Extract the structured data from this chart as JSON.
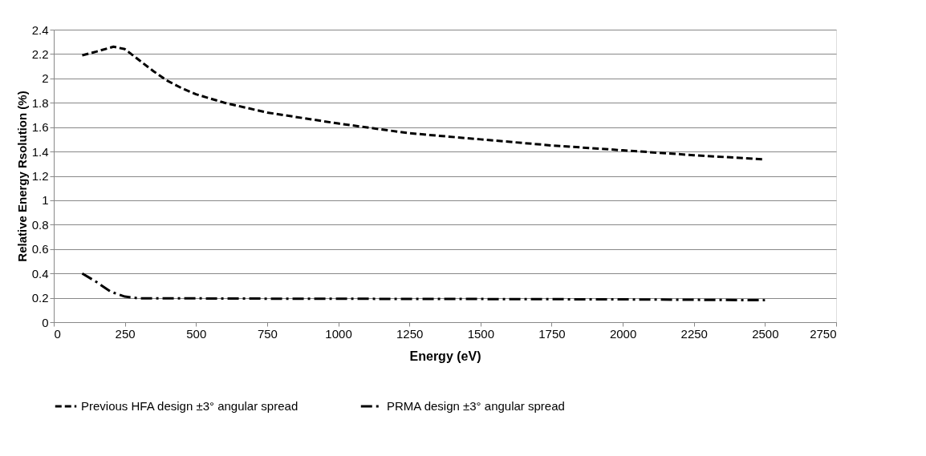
{
  "chart_data": {
    "type": "line",
    "xlabel": "Energy (eV)",
    "ylabel": "Relative Energy Rsolution (%)",
    "xlim": [
      0,
      2750
    ],
    "xticks": [
      0,
      250,
      500,
      750,
      1000,
      1250,
      1500,
      1750,
      2000,
      2250,
      2500,
      2750
    ],
    "ylim": [
      0,
      2.4
    ],
    "yticks": [
      0,
      0.2,
      0.4,
      0.6,
      0.8,
      1,
      1.2,
      1.4,
      1.6,
      1.8,
      2,
      2.2,
      2.4
    ],
    "grid": "y",
    "legend": "bottom",
    "marker": "none",
    "series": [
      {
        "name": "Previous HFA design ±3° angular spread",
        "color": "#000000",
        "line_style": "dashed",
        "x": [
          100,
          150,
          210,
          250,
          300,
          350,
          400,
          450,
          500,
          600,
          750,
          1000,
          1250,
          1500,
          1750,
          2000,
          2250,
          2500
        ],
        "values": [
          2.19,
          2.22,
          2.26,
          2.24,
          2.15,
          2.06,
          1.98,
          1.92,
          1.87,
          1.8,
          1.72,
          1.63,
          1.55,
          1.5,
          1.45,
          1.41,
          1.37,
          1.335
        ]
      },
      {
        "name": "PRMA design ±3° angular spread",
        "color": "#000000",
        "line_style": "dashdot",
        "x": [
          100,
          150,
          200,
          250,
          300,
          400,
          500,
          750,
          1000,
          1500,
          2000,
          2500
        ],
        "values": [
          0.4,
          0.33,
          0.25,
          0.21,
          0.195,
          0.195,
          0.195,
          0.193,
          0.192,
          0.19,
          0.187,
          0.18
        ]
      }
    ]
  }
}
